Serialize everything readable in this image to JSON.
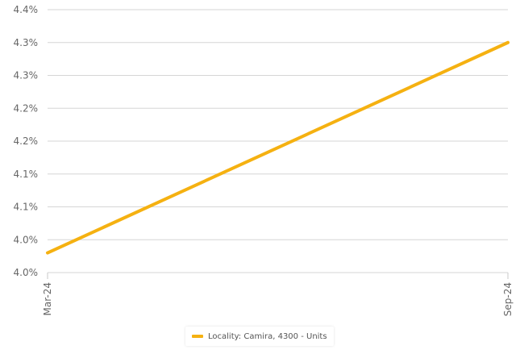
{
  "chart_data": {
    "type": "line",
    "title": "",
    "xlabel": "",
    "ylabel": "",
    "categories": [
      "Mar-24",
      "Sep-24"
    ],
    "y_tick_labels": [
      "4.4%",
      "4.3%",
      "4.3%",
      "4.2%",
      "4.2%",
      "4.1%",
      "4.1%",
      "4.0%",
      "4.0%"
    ],
    "ylim": [
      3.96,
      4.36
    ],
    "grid": true,
    "legend_position": "bottom",
    "series": [
      {
        "name": "Locality: Camira, 4300 - Units",
        "color": "#f5b111",
        "values": [
          3.99,
          4.31
        ]
      }
    ]
  }
}
